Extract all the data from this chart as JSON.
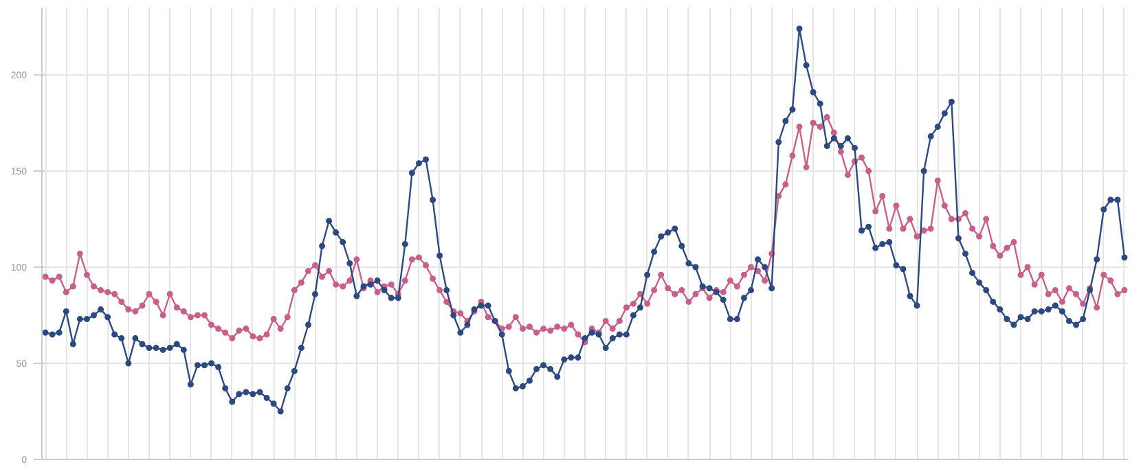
{
  "chart_data": {
    "type": "line",
    "categories": [
      null,
      null,
      null,
      null,
      null,
      null,
      null,
      null,
      null,
      null,
      null,
      null,
      null,
      null,
      null,
      null,
      null,
      null,
      null,
      null,
      null,
      null,
      null,
      null,
      null,
      null,
      null,
      null,
      null,
      null,
      null,
      null,
      null,
      null,
      null,
      null,
      null,
      null,
      null,
      null,
      null,
      null,
      null,
      null,
      null,
      null,
      null,
      null,
      null,
      null,
      null,
      null,
      null,
      null,
      null,
      null,
      null,
      null,
      null,
      null,
      null,
      null,
      null,
      null,
      null,
      null,
      null,
      null,
      null,
      null,
      null,
      null,
      null,
      null,
      null,
      null,
      null,
      null,
      null,
      null,
      null,
      null,
      null,
      null,
      null,
      null,
      null,
      null,
      null,
      null,
      null,
      null,
      null,
      null,
      null,
      null,
      null,
      null,
      null,
      null,
      null,
      null,
      null,
      null,
      null,
      null,
      null,
      null,
      null,
      null,
      null,
      null,
      null,
      null,
      null,
      null,
      null,
      null,
      null,
      null,
      null,
      null,
      null,
      null,
      null,
      null,
      null,
      null,
      null,
      null,
      null,
      null,
      null,
      null,
      null,
      null,
      null,
      null,
      null,
      null,
      null,
      null,
      null,
      null,
      null,
      null,
      null,
      null,
      null,
      null,
      null,
      null,
      null,
      null,
      null,
      null,
      null
    ],
    "series": [
      {
        "color": "#c8608a",
        "values": [
          95,
          93,
          95,
          87,
          90,
          107,
          96,
          90,
          88,
          87,
          86,
          82,
          78,
          77,
          80,
          86,
          82,
          75,
          86,
          79,
          77,
          74,
          75,
          75,
          70,
          68,
          66,
          63,
          67,
          68,
          64,
          63,
          65,
          73,
          68,
          74,
          88,
          92,
          98,
          101,
          95,
          98,
          91,
          90,
          93,
          104,
          89,
          93,
          87,
          90,
          91,
          86,
          93,
          104,
          105,
          101,
          94,
          88,
          82,
          77,
          76,
          72,
          77,
          82,
          74,
          72,
          68,
          69,
          74,
          68,
          69,
          66,
          68,
          67,
          69,
          68,
          70,
          65,
          61,
          68,
          66,
          72,
          68,
          72,
          79,
          81,
          86,
          81,
          88,
          96,
          89,
          86,
          88,
          82,
          86,
          89,
          84,
          88,
          87,
          93,
          90,
          96,
          100,
          98,
          93,
          107,
          137,
          143,
          158,
          173,
          152,
          175,
          173,
          178,
          170,
          160,
          148,
          155,
          157,
          150,
          129,
          137,
          120,
          132,
          120,
          125,
          116,
          119,
          120,
          145,
          132,
          125,
          125,
          128,
          120,
          116,
          125,
          111,
          106,
          110,
          113,
          96,
          100,
          91,
          96,
          86,
          88,
          82,
          89,
          86,
          81,
          89,
          79,
          96,
          93,
          86,
          88
        ]
      },
      {
        "color": "#2c4a80",
        "values": [
          66,
          65,
          66,
          77,
          60,
          73,
          73,
          75,
          78,
          74,
          65,
          63,
          50,
          63,
          60,
          58,
          58,
          57,
          58,
          60,
          57,
          39,
          49,
          49,
          50,
          48,
          37,
          30,
          34,
          35,
          34,
          35,
          32,
          29,
          25,
          37,
          46,
          58,
          70,
          86,
          111,
          124,
          118,
          113,
          102,
          85,
          90,
          91,
          93,
          88,
          84,
          84,
          112,
          149,
          154,
          156,
          135,
          106,
          88,
          75,
          66,
          70,
          78,
          80,
          80,
          72,
          65,
          46,
          37,
          38,
          41,
          47,
          49,
          47,
          43,
          52,
          53,
          53,
          63,
          66,
          65,
          58,
          63,
          65,
          65,
          75,
          79,
          96,
          108,
          116,
          118,
          120,
          111,
          102,
          100,
          90,
          89,
          87,
          83,
          73,
          73,
          84,
          88,
          104,
          100,
          89,
          165,
          176,
          182,
          224,
          205,
          191,
          185,
          163,
          167,
          163,
          167,
          162,
          119,
          121,
          110,
          112,
          113,
          101,
          99,
          85,
          80,
          150,
          168,
          173,
          180,
          186,
          115,
          107,
          97,
          92,
          88,
          82,
          78,
          73,
          70,
          74,
          73,
          77,
          77,
          78,
          80,
          77,
          72,
          70,
          73,
          88,
          104,
          130,
          135,
          135,
          105
        ]
      }
    ],
    "ylim": [
      0,
      235
    ],
    "yticks": [
      0,
      50,
      100,
      150,
      200
    ],
    "grid": true,
    "marker": "circle",
    "line_style": "solid",
    "tick_labels": "y"
  }
}
